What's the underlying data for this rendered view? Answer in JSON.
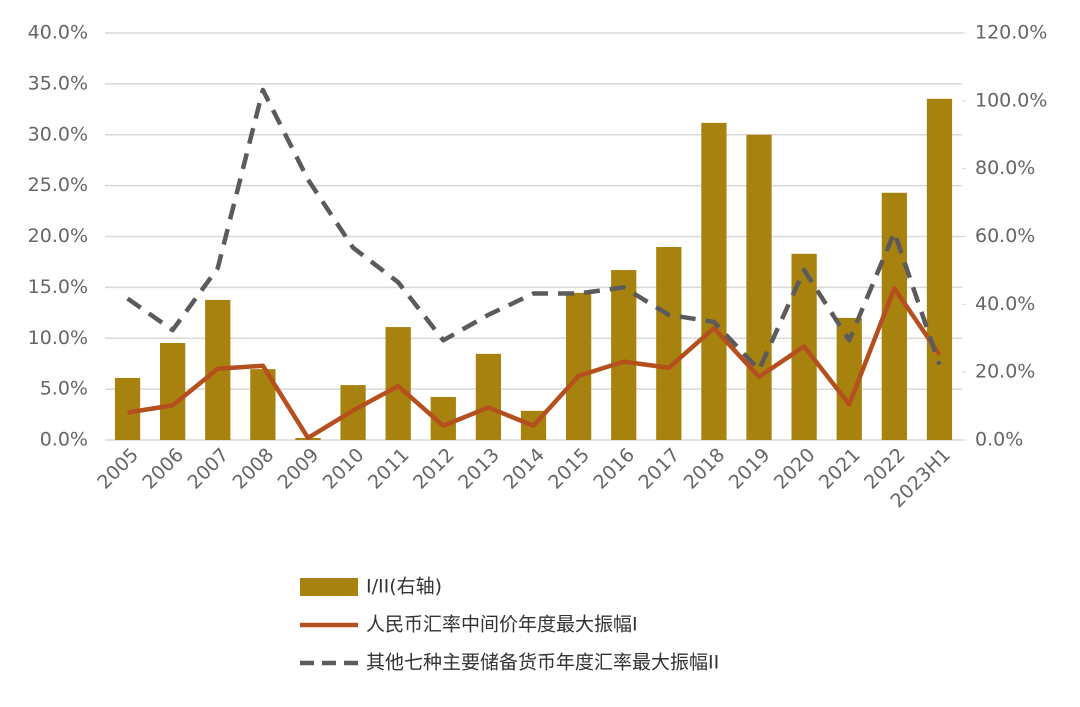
{
  "chart_data": {
    "type": "bar_line",
    "categories": [
      "2005",
      "2006",
      "2007",
      "2008",
      "2009",
      "2010",
      "2011",
      "2012",
      "2013",
      "2014",
      "2015",
      "2016",
      "2017",
      "2018",
      "2019",
      "2020",
      "2021",
      "2022",
      "2023H1"
    ],
    "series": [
      {
        "name": "I/II(右轴)",
        "type": "bar",
        "axis": "y2",
        "color": "#a8820e",
        "values": [
          18.3,
          28.6,
          41.3,
          20.9,
          0.6,
          16.2,
          33.3,
          12.7,
          25.4,
          8.6,
          43.4,
          50.1,
          56.9,
          93.5,
          90.0,
          54.9,
          36.0,
          72.9,
          100.6
        ]
      },
      {
        "name": "人民币汇率中间价年度最大振幅I",
        "type": "line",
        "axis": "y",
        "color": "#b5501e",
        "values": [
          2.7,
          3.4,
          7.0,
          7.3,
          0.2,
          2.9,
          5.3,
          1.4,
          3.2,
          1.4,
          6.3,
          7.7,
          7.1,
          11.0,
          6.2,
          9.2,
          3.5,
          14.9,
          8.4
        ]
      },
      {
        "name": "其他七种主要储备货币年度汇率最大振幅II",
        "type": "dashed-line",
        "axis": "y",
        "color": "#5b5b5b",
        "values": [
          13.9,
          10.8,
          16.9,
          34.4,
          25.6,
          18.9,
          15.5,
          9.8,
          12.3,
          14.4,
          14.4,
          15.0,
          12.3,
          11.6,
          6.9,
          16.7,
          9.8,
          20.4,
          7.4
        ]
      }
    ],
    "ylim": [
      0,
      40
    ],
    "yticks": [
      {
        "value": 0,
        "label": "0.0%"
      },
      {
        "value": 5,
        "label": "5.0%"
      },
      {
        "value": 10,
        "label": "10.0%"
      },
      {
        "value": 15,
        "label": "15.0%"
      },
      {
        "value": 20,
        "label": "20.0%"
      },
      {
        "value": 25,
        "label": "25.0%"
      },
      {
        "value": 30,
        "label": "30.0%"
      },
      {
        "value": 35,
        "label": "35.0%"
      },
      {
        "value": 40,
        "label": "40.0%"
      }
    ],
    "y2lim": [
      0,
      120
    ],
    "y2ticks": [
      {
        "value": 0,
        "label": "0.0%"
      },
      {
        "value": 20,
        "label": "20.0%"
      },
      {
        "value": 40,
        "label": "40.0%"
      },
      {
        "value": 60,
        "label": "60.0%"
      },
      {
        "value": 80,
        "label": "80.0%"
      },
      {
        "value": 100,
        "label": "100.0%"
      },
      {
        "value": 120,
        "label": "120.0%"
      }
    ],
    "grid": true
  }
}
